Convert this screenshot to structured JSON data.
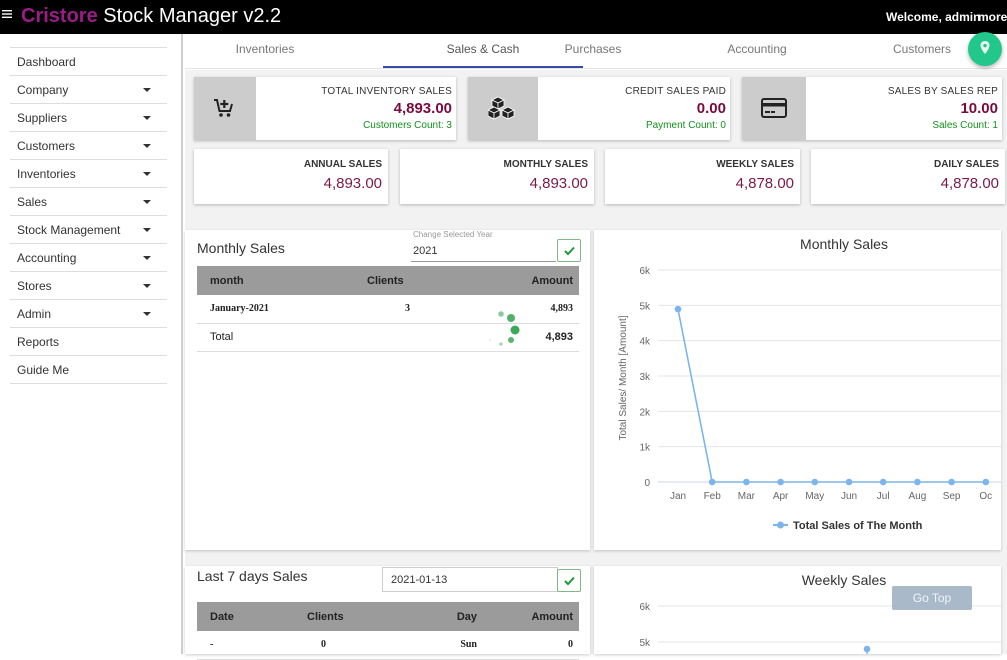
{
  "header": {
    "brand_part1": "Cristore",
    "brand_part2": " Stock Manager v2.2",
    "welcome": "Welcome, admin",
    "more": "more"
  },
  "sidebar": {
    "items": [
      {
        "label": "Dashboard",
        "has_dropdown": false
      },
      {
        "label": "Company",
        "has_dropdown": true
      },
      {
        "label": "Suppliers",
        "has_dropdown": true
      },
      {
        "label": "Customers",
        "has_dropdown": true
      },
      {
        "label": "Inventories",
        "has_dropdown": true
      },
      {
        "label": "Sales",
        "has_dropdown": true
      },
      {
        "label": "Stock Management",
        "has_dropdown": true
      },
      {
        "label": "Accounting",
        "has_dropdown": true
      },
      {
        "label": "Stores",
        "has_dropdown": true
      },
      {
        "label": "Admin",
        "has_dropdown": true
      },
      {
        "label": "Reports",
        "has_dropdown": false
      },
      {
        "label": "Guide Me",
        "has_dropdown": false
      }
    ]
  },
  "tabs": [
    {
      "label": "Inventories",
      "active": false
    },
    {
      "label": "Sales & Cash",
      "active": true
    },
    {
      "label": "Purchases",
      "active": false
    },
    {
      "label": "Accounting",
      "active": false
    },
    {
      "label": "Customers",
      "active": false
    }
  ],
  "stats": [
    {
      "label": "TOTAL INVENTORY SALES",
      "value": "4,893.00",
      "sub": "Customers Count: 3",
      "icon": "add-cart-icon"
    },
    {
      "label": "CREDIT SALES PAID",
      "value": "0.00",
      "sub": "Payment Count: 0",
      "icon": "cubes-icon"
    },
    {
      "label": "SALES BY SALES REP",
      "value": "10.00",
      "sub": "Sales Count: 1",
      "icon": "credit-card-icon"
    }
  ],
  "summary": [
    {
      "label": "ANNUAL SALES",
      "value": "4,893.00"
    },
    {
      "label": "MONTHLY SALES",
      "value": "4,893.00"
    },
    {
      "label": "WEEKLY SALES",
      "value": "4,878.00"
    },
    {
      "label": "DAILY SALES",
      "value": "4,878.00"
    }
  ],
  "monthly_panel": {
    "title": "Monthly Sales",
    "year_label": "Change Selected Year",
    "year_value": "2021",
    "headers": [
      "month",
      "Clients",
      "Amount"
    ],
    "rows": [
      {
        "month": "January-2021",
        "clients": "3",
        "amount": "4,893"
      }
    ],
    "total_label": "Total",
    "total_amount": "4,893"
  },
  "weekly_panel": {
    "title": "Last 7 days Sales",
    "date_value": "2021-01-13",
    "headers": [
      "Date",
      "Clients",
      "Day",
      "Amount"
    ],
    "rows": [
      {
        "date": "-",
        "clients": "0",
        "day": "Sun",
        "amount": "0"
      }
    ]
  },
  "go_top": "Go Top",
  "chart_data": [
    {
      "type": "line",
      "title": "Monthly Sales",
      "ylabel": "Total Sales/ Month [Amount]",
      "xlabel": "",
      "categories": [
        "Jan",
        "Feb",
        "Mar",
        "Apr",
        "May",
        "Jun",
        "Jul",
        "Aug",
        "Sep",
        "Oc"
      ],
      "series": [
        {
          "name": "Total Sales of The Month",
          "values": [
            4893,
            0,
            0,
            0,
            0,
            0,
            0,
            0,
            0,
            0
          ]
        }
      ],
      "yticks": [
        "0",
        "1k",
        "2k",
        "3k",
        "4k",
        "5k",
        "6k"
      ],
      "ylim": [
        0,
        6000
      ],
      "color": "#7cb5ec",
      "legend": "bottom"
    },
    {
      "type": "line",
      "title": "Weekly Sales",
      "yticks_visible": [
        "5k",
        "6k"
      ],
      "ylim": [
        0,
        6000
      ],
      "series": [
        {
          "values": [
            4878
          ]
        }
      ],
      "color": "#7cb5ec"
    }
  ],
  "colors": {
    "brand": "#9c1c86",
    "accent": "#22c78b",
    "value": "#7a0b3d",
    "green_text": "#13901b",
    "series": "#7cb5ec"
  }
}
